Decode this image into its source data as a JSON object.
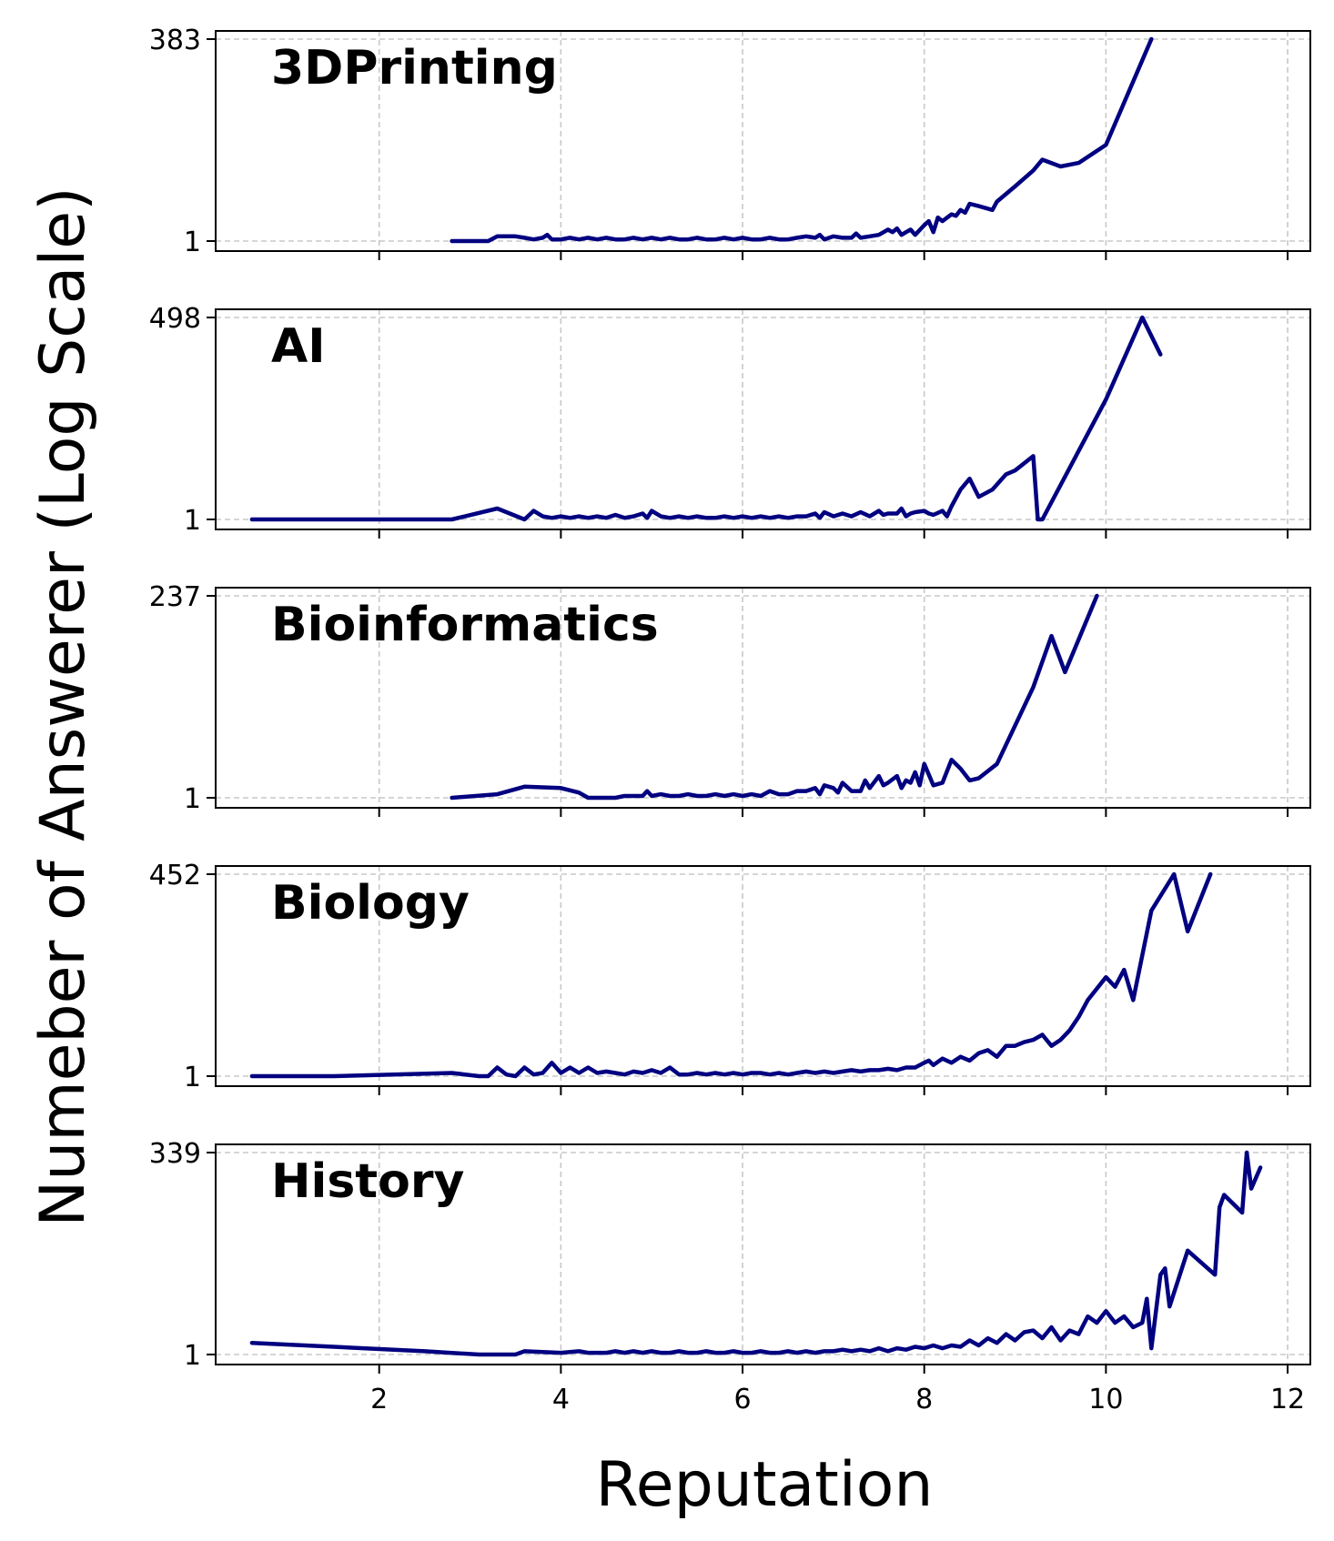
{
  "chart_data": [
    {
      "type": "line",
      "title": "3DPrinting",
      "yscale": "log",
      "ylim": [
        1,
        383
      ],
      "ytick_labels": [
        "383",
        "1"
      ],
      "color": "#000080",
      "grid": true,
      "x": [
        2.8,
        3.2,
        3.3,
        3.5,
        3.6,
        3.7,
        3.8,
        3.85,
        3.9,
        4.0,
        4.1,
        4.2,
        4.3,
        4.4,
        4.5,
        4.6,
        4.7,
        4.8,
        4.9,
        5.0,
        5.1,
        5.2,
        5.3,
        5.4,
        5.5,
        5.6,
        5.7,
        5.8,
        5.9,
        6.0,
        6.1,
        6.2,
        6.3,
        6.4,
        6.5,
        6.6,
        6.7,
        6.8,
        6.85,
        6.9,
        7.0,
        7.1,
        7.2,
        7.25,
        7.3,
        7.4,
        7.5,
        7.6,
        7.65,
        7.7,
        7.75,
        7.8,
        7.85,
        7.9,
        8.0,
        8.05,
        8.1,
        8.15,
        8.2,
        8.3,
        8.35,
        8.4,
        8.45,
        8.5,
        8.6,
        8.75,
        8.8,
        9.0,
        9.2,
        9.3,
        9.5,
        9.7,
        10.0,
        10.5
      ],
      "values": [
        1,
        1,
        1.15,
        1.15,
        1.1,
        1.05,
        1.1,
        1.2,
        1.05,
        1.05,
        1.1,
        1.05,
        1.1,
        1.05,
        1.1,
        1.05,
        1.05,
        1.1,
        1.05,
        1.1,
        1.05,
        1.1,
        1.05,
        1.05,
        1.1,
        1.05,
        1.05,
        1.1,
        1.05,
        1.1,
        1.05,
        1.05,
        1.1,
        1.05,
        1.05,
        1.1,
        1.15,
        1.1,
        1.2,
        1.05,
        1.15,
        1.1,
        1.1,
        1.25,
        1.1,
        1.15,
        1.2,
        1.4,
        1.3,
        1.45,
        1.2,
        1.3,
        1.4,
        1.2,
        1.6,
        1.8,
        1.3,
        2.0,
        1.8,
        2.2,
        2.1,
        2.5,
        2.3,
        3.0,
        2.8,
        2.5,
        3.2,
        5,
        8,
        11,
        9,
        10,
        17,
        383
      ]
    },
    {
      "type": "line",
      "title": "AI",
      "yscale": "log",
      "ylim": [
        1,
        498
      ],
      "ytick_labels": [
        "498",
        "1"
      ],
      "color": "#000080",
      "grid": true,
      "x": [
        0.6,
        1.5,
        2.8,
        3.3,
        3.6,
        3.7,
        3.8,
        3.9,
        4.0,
        4.1,
        4.2,
        4.3,
        4.4,
        4.5,
        4.6,
        4.7,
        4.8,
        4.9,
        4.95,
        5.0,
        5.1,
        5.2,
        5.3,
        5.4,
        5.5,
        5.6,
        5.7,
        5.8,
        5.9,
        6.0,
        6.1,
        6.2,
        6.3,
        6.4,
        6.5,
        6.6,
        6.7,
        6.8,
        6.85,
        6.9,
        7.0,
        7.1,
        7.2,
        7.3,
        7.4,
        7.5,
        7.55,
        7.6,
        7.7,
        7.75,
        7.8,
        7.85,
        7.9,
        8.0,
        8.05,
        8.1,
        8.2,
        8.25,
        8.3,
        8.4,
        8.5,
        8.6,
        8.75,
        8.9,
        9.0,
        9.2,
        9.25,
        9.3,
        10.0,
        10.4,
        10.6
      ],
      "values": [
        1,
        1,
        1,
        1.4,
        1,
        1.3,
        1.1,
        1.05,
        1.1,
        1.05,
        1.1,
        1.05,
        1.1,
        1.05,
        1.15,
        1.05,
        1.1,
        1.2,
        1.05,
        1.3,
        1.1,
        1.05,
        1.1,
        1.05,
        1.1,
        1.05,
        1.05,
        1.1,
        1.05,
        1.1,
        1.05,
        1.1,
        1.05,
        1.1,
        1.05,
        1.1,
        1.1,
        1.2,
        1.05,
        1.25,
        1.1,
        1.2,
        1.1,
        1.25,
        1.1,
        1.3,
        1.15,
        1.2,
        1.2,
        1.4,
        1.1,
        1.2,
        1.25,
        1.3,
        1.2,
        1.15,
        1.3,
        1.1,
        1.5,
        2.5,
        3.5,
        2,
        2.5,
        4,
        4.5,
        7,
        1,
        1,
        40,
        498,
        160
      ]
    },
    {
      "type": "line",
      "title": "Bioinformatics",
      "yscale": "log",
      "ylim": [
        1,
        237
      ],
      "ytick_labels": [
        "237",
        "1"
      ],
      "color": "#000080",
      "grid": true,
      "x": [
        2.8,
        3.3,
        3.6,
        4.0,
        4.2,
        4.3,
        4.5,
        4.6,
        4.7,
        4.8,
        4.9,
        4.95,
        5.0,
        5.1,
        5.2,
        5.3,
        5.4,
        5.5,
        5.6,
        5.7,
        5.8,
        5.9,
        6.0,
        6.1,
        6.2,
        6.3,
        6.4,
        6.5,
        6.6,
        6.7,
        6.8,
        6.85,
        6.9,
        7.0,
        7.05,
        7.1,
        7.2,
        7.3,
        7.35,
        7.4,
        7.5,
        7.55,
        7.6,
        7.7,
        7.75,
        7.8,
        7.85,
        7.9,
        7.95,
        8.0,
        8.1,
        8.2,
        8.3,
        8.4,
        8.5,
        8.6,
        8.8,
        9.2,
        9.4,
        9.55,
        9.9
      ],
      "values": [
        1,
        1.1,
        1.35,
        1.3,
        1.15,
        1,
        1,
        1,
        1.05,
        1.05,
        1.05,
        1.2,
        1.05,
        1.1,
        1.05,
        1.05,
        1.1,
        1.05,
        1.05,
        1.1,
        1.05,
        1.1,
        1.05,
        1.1,
        1.05,
        1.2,
        1.1,
        1.1,
        1.2,
        1.2,
        1.3,
        1.1,
        1.4,
        1.3,
        1.15,
        1.5,
        1.2,
        1.2,
        1.6,
        1.3,
        1.8,
        1.4,
        1.5,
        1.8,
        1.3,
        1.6,
        1.5,
        2,
        1.4,
        2.5,
        1.4,
        1.5,
        2.8,
        2.2,
        1.6,
        1.7,
        2.5,
        20,
        80,
        30,
        237
      ]
    },
    {
      "type": "line",
      "title": "Biology",
      "yscale": "log",
      "ylim": [
        1,
        452
      ],
      "ytick_labels": [
        "452",
        "1"
      ],
      "color": "#000080",
      "grid": true,
      "x": [
        0.6,
        1.5,
        2.8,
        3.1,
        3.2,
        3.3,
        3.4,
        3.5,
        3.6,
        3.7,
        3.8,
        3.9,
        4.0,
        4.1,
        4.2,
        4.3,
        4.4,
        4.5,
        4.6,
        4.7,
        4.8,
        4.9,
        5.0,
        5.1,
        5.2,
        5.3,
        5.4,
        5.5,
        5.6,
        5.7,
        5.8,
        5.9,
        6.0,
        6.1,
        6.2,
        6.3,
        6.4,
        6.5,
        6.6,
        6.7,
        6.8,
        6.9,
        7.0,
        7.1,
        7.2,
        7.3,
        7.4,
        7.5,
        7.6,
        7.7,
        7.8,
        7.9,
        8.0,
        8.05,
        8.1,
        8.2,
        8.3,
        8.4,
        8.5,
        8.6,
        8.7,
        8.8,
        8.9,
        9.0,
        9.1,
        9.2,
        9.3,
        9.4,
        9.5,
        9.6,
        9.7,
        9.8,
        10.0,
        10.1,
        10.2,
        10.3,
        10.5,
        10.75,
        10.9,
        11.15
      ],
      "values": [
        1,
        1,
        1.1,
        1,
        1,
        1.3,
        1.05,
        1,
        1.3,
        1.05,
        1.1,
        1.5,
        1.1,
        1.3,
        1.1,
        1.3,
        1.1,
        1.15,
        1.1,
        1.05,
        1.15,
        1.1,
        1.2,
        1.1,
        1.3,
        1.05,
        1.05,
        1.1,
        1.05,
        1.1,
        1.05,
        1.1,
        1.05,
        1.1,
        1.1,
        1.05,
        1.1,
        1.05,
        1.1,
        1.15,
        1.1,
        1.15,
        1.1,
        1.15,
        1.2,
        1.15,
        1.2,
        1.2,
        1.25,
        1.2,
        1.3,
        1.3,
        1.5,
        1.6,
        1.4,
        1.7,
        1.5,
        1.8,
        1.6,
        2,
        2.2,
        1.8,
        2.5,
        2.5,
        2.8,
        3,
        3.5,
        2.5,
        3,
        4,
        6,
        10,
        20,
        15,
        25,
        10,
        150,
        452,
        80,
        452
      ]
    },
    {
      "type": "line",
      "title": "History",
      "yscale": "log",
      "ylim": [
        1,
        339
      ],
      "ytick_labels": [
        "339",
        "1"
      ],
      "color": "#000080",
      "grid": true,
      "x": [
        0.6,
        1.5,
        2.5,
        3.1,
        3.5,
        3.6,
        4.0,
        4.2,
        4.3,
        4.5,
        4.6,
        4.7,
        4.8,
        4.9,
        5.0,
        5.1,
        5.2,
        5.3,
        5.4,
        5.5,
        5.6,
        5.7,
        5.8,
        5.9,
        6.0,
        6.1,
        6.2,
        6.3,
        6.4,
        6.5,
        6.6,
        6.7,
        6.8,
        6.9,
        7.0,
        7.1,
        7.2,
        7.3,
        7.4,
        7.5,
        7.6,
        7.7,
        7.8,
        7.9,
        8.0,
        8.1,
        8.2,
        8.3,
        8.4,
        8.5,
        8.6,
        8.7,
        8.8,
        8.9,
        9.0,
        9.1,
        9.2,
        9.3,
        9.4,
        9.5,
        9.6,
        9.7,
        9.8,
        9.9,
        10.0,
        10.1,
        10.2,
        10.3,
        10.4,
        10.45,
        10.5,
        10.6,
        10.65,
        10.7,
        10.9,
        11.2,
        11.25,
        11.3,
        11.5,
        11.55,
        11.6,
        11.7
      ],
      "values": [
        1.4,
        1.25,
        1.1,
        1,
        1,
        1.1,
        1.05,
        1.1,
        1.05,
        1.05,
        1.1,
        1.05,
        1.1,
        1.05,
        1.1,
        1.05,
        1.05,
        1.1,
        1.05,
        1.05,
        1.1,
        1.05,
        1.05,
        1.1,
        1.05,
        1.05,
        1.1,
        1.05,
        1.05,
        1.1,
        1.05,
        1.1,
        1.05,
        1.1,
        1.1,
        1.15,
        1.1,
        1.15,
        1.1,
        1.2,
        1.1,
        1.2,
        1.15,
        1.25,
        1.2,
        1.3,
        1.2,
        1.3,
        1.25,
        1.5,
        1.3,
        1.6,
        1.4,
        1.8,
        1.5,
        1.9,
        2,
        1.6,
        2.2,
        1.5,
        2,
        1.8,
        3,
        2.5,
        3.5,
        2.5,
        3,
        2.2,
        2.5,
        5,
        1.2,
        10,
        12,
        4,
        20,
        10,
        70,
        100,
        60,
        339,
        120,
        220
      ]
    }
  ],
  "xaxis": {
    "label": "Reputation",
    "ticks": [
      2,
      4,
      6,
      8,
      10,
      12
    ],
    "xlim": [
      0.2,
      12.25
    ]
  },
  "yaxis": {
    "label": "Numeber of Answerer (Log Scale)"
  }
}
